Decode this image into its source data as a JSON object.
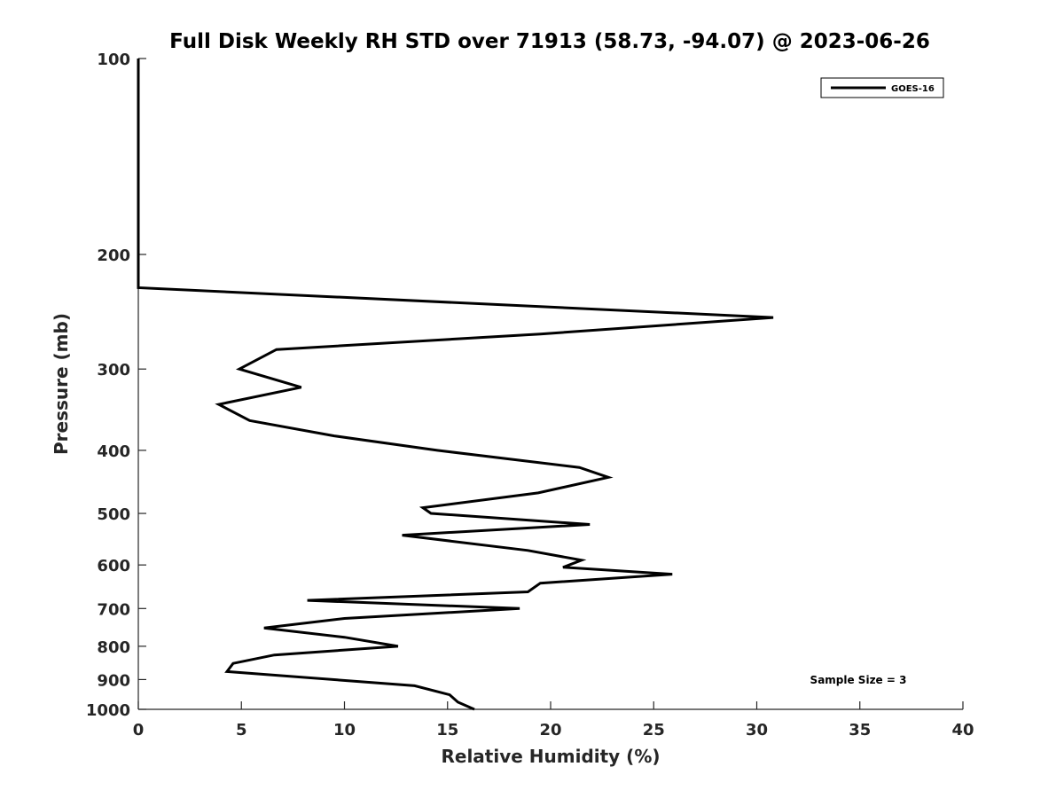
{
  "chart_data": {
    "type": "line",
    "title": "Full Disk Weekly RH STD over 71913 (58.73, -94.07) @ 2023-06-26",
    "xlabel": "Relative Humidity (%)",
    "ylabel": "Pressure (mb)",
    "xlim": [
      0,
      40
    ],
    "ylim": [
      100,
      1000
    ],
    "y_scale": "log",
    "y_inverted": true,
    "grid": false,
    "legend_position": "top-right",
    "x_ticks": [
      0,
      5,
      10,
      15,
      20,
      25,
      30,
      35,
      40
    ],
    "y_ticks": [
      100,
      200,
      300,
      400,
      500,
      600,
      700,
      800,
      900,
      1000
    ],
    "annotation": "Sample Size = 3",
    "series": [
      {
        "name": "GOES-16",
        "color": "#000000",
        "points": [
          [
            0,
            100
          ],
          [
            0,
            150
          ],
          [
            0,
            200
          ],
          [
            0,
            225
          ],
          [
            30.8,
            250
          ],
          [
            19.5,
            265
          ],
          [
            6.7,
            280
          ],
          [
            4.9,
            300
          ],
          [
            7.9,
            320
          ],
          [
            3.9,
            340
          ],
          [
            5.4,
            360
          ],
          [
            9.5,
            380
          ],
          [
            14.5,
            400
          ],
          [
            21.4,
            425
          ],
          [
            22.8,
            440
          ],
          [
            19.4,
            465
          ],
          [
            13.8,
            490
          ],
          [
            14.2,
            500
          ],
          [
            21.9,
            520
          ],
          [
            12.8,
            540
          ],
          [
            18.9,
            570
          ],
          [
            21.5,
            590
          ],
          [
            20.6,
            605
          ],
          [
            25.9,
            620
          ],
          [
            19.5,
            640
          ],
          [
            18.9,
            660
          ],
          [
            8.2,
            680
          ],
          [
            18.5,
            700
          ],
          [
            10.0,
            725
          ],
          [
            6.1,
            750
          ],
          [
            10.0,
            775
          ],
          [
            12.6,
            800
          ],
          [
            6.6,
            825
          ],
          [
            4.6,
            850
          ],
          [
            4.3,
            875
          ],
          [
            13.4,
            920
          ],
          [
            15.1,
            950
          ],
          [
            15.5,
            975
          ],
          [
            16.3,
            1000
          ]
        ]
      }
    ]
  }
}
